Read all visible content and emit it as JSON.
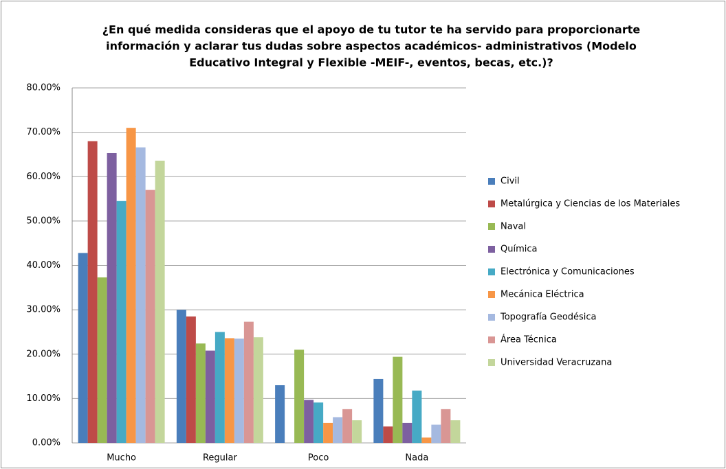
{
  "chart_data": {
    "type": "bar",
    "title": [
      "¿En qué medida consideras que el apoyo de tu tutor te ha servido para proporcionarte",
      "información y aclarar tus dudas sobre aspectos académicos- administrativos (Modelo",
      "Educativo Integral y Flexible -MEIF-, eventos, becas, etc.)?"
    ],
    "categories": [
      "Mucho",
      "Regular",
      "Poco",
      "Nada"
    ],
    "series": [
      {
        "name": "Civil",
        "color": "#4a7ebb",
        "values": [
          42.8,
          30.0,
          13.0,
          14.4
        ]
      },
      {
        "name": "Metalúrgica y Ciencias de los Materiales",
        "color": "#be4b48",
        "values": [
          68.0,
          28.5,
          0,
          3.7
        ]
      },
      {
        "name": "Naval",
        "color": "#98b954",
        "values": [
          37.3,
          22.4,
          21.0,
          19.4
        ]
      },
      {
        "name": "Química",
        "color": "#7d60a0",
        "values": [
          65.3,
          20.8,
          9.7,
          4.5
        ]
      },
      {
        "name": "Electrónica y Comunicaciones",
        "color": "#46aac5",
        "values": [
          54.5,
          25.0,
          9.1,
          11.8
        ]
      },
      {
        "name": "Mecánica Eléctrica",
        "color": "#f79646",
        "values": [
          71.0,
          23.6,
          4.5,
          1.2
        ]
      },
      {
        "name": "Topografía Geodésica",
        "color": "#a5b9e0",
        "values": [
          66.6,
          23.5,
          5.8,
          4.1
        ]
      },
      {
        "name": "Área Técnica",
        "color": "#d99694",
        "values": [
          57.0,
          27.3,
          7.6,
          7.6
        ]
      },
      {
        "name": "Universidad Veracruzana",
        "color": "#c3d69b",
        "values": [
          63.6,
          23.8,
          5.1,
          5.1
        ]
      }
    ],
    "ylim": [
      0,
      80
    ],
    "yticks": [
      {
        "value": 0,
        "label": "0.00%"
      },
      {
        "value": 10,
        "label": "10.00%"
      },
      {
        "value": 20,
        "label": "20.00%"
      },
      {
        "value": 30,
        "label": "30.00%"
      },
      {
        "value": 40,
        "label": "40.00%"
      },
      {
        "value": 50,
        "label": "50.00%"
      },
      {
        "value": 60,
        "label": "60.00%"
      },
      {
        "value": 70,
        "label": "70.00%"
      },
      {
        "value": 80,
        "label": "80.00%"
      }
    ],
    "grid": true,
    "legend": "right"
  }
}
